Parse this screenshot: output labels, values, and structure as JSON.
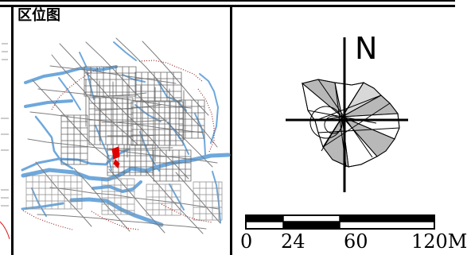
{
  "legend": {
    "title": "区位图"
  },
  "north": {
    "label": "N"
  },
  "scale": {
    "labels": [
      "0",
      "24",
      "60",
      "120M"
    ]
  },
  "colors": {
    "road": "#7f7f7f",
    "water": "#6ea8dc",
    "highlight": "#e00000",
    "boundary": "#9b1d1d",
    "rose_fill": "#b8b8b8"
  }
}
